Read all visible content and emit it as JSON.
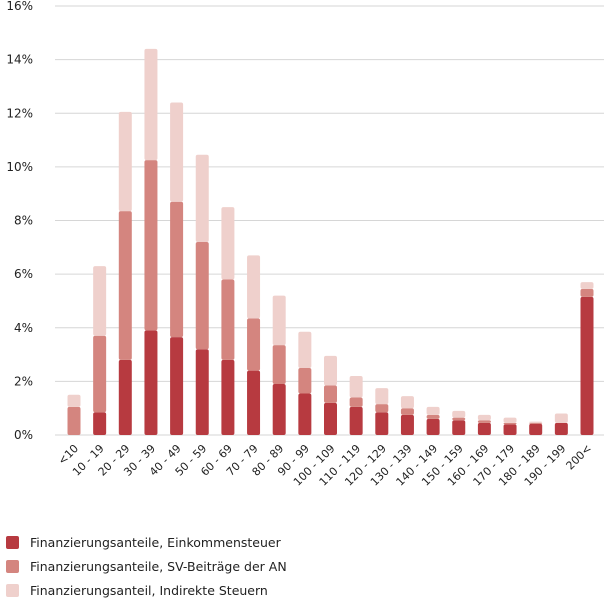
{
  "chart_data": {
    "type": "bar",
    "stacked": true,
    "categories": [
      "<10",
      "10 - 19",
      "20 - 29",
      "30 - 39",
      "40 - 49",
      "50 - 59",
      "60 - 69",
      "70 - 79",
      "80 - 89",
      "90 - 99",
      "100 - 109",
      "110 - 119",
      "120 - 129",
      "130 - 139",
      "140 - 149",
      "150 - 159",
      "160 - 169",
      "170 - 179",
      "180 - 189",
      "190 - 199",
      "200<"
    ],
    "series": [
      {
        "name": "Finanzierungsanteile, Einkommensteuer",
        "color": "#b73a40",
        "values": [
          0.0,
          0.85,
          2.8,
          3.9,
          3.65,
          3.2,
          2.8,
          2.4,
          1.9,
          1.55,
          1.2,
          1.05,
          0.85,
          0.75,
          0.6,
          0.55,
          0.45,
          0.4,
          0.42,
          0.45,
          5.15
        ]
      },
      {
        "name": "Finanzierungsanteile, SV-Beiträge der AN",
        "color": "#d4857f",
        "values": [
          1.05,
          2.85,
          5.55,
          6.35,
          5.05,
          4.0,
          3.0,
          1.95,
          1.45,
          0.95,
          0.65,
          0.35,
          0.3,
          0.25,
          0.15,
          0.1,
          0.1,
          0.05,
          0.03,
          0.0,
          0.3
        ]
      },
      {
        "name": "Finanzierungsanteil, Indirekte Steuern",
        "color": "#efd0cc",
        "values": [
          0.45,
          2.6,
          3.7,
          4.15,
          3.7,
          3.25,
          2.7,
          2.35,
          1.85,
          1.35,
          1.1,
          0.8,
          0.6,
          0.45,
          0.3,
          0.25,
          0.2,
          0.2,
          0.05,
          0.35,
          0.25
        ]
      }
    ],
    "y_ticks": [
      "0%",
      "2%",
      "4%",
      "6%",
      "8%",
      "10%",
      "12%",
      "14%",
      "16%"
    ],
    "ylim": [
      0,
      16
    ],
    "grid": "horizontal",
    "legend_position": "bottom-left"
  }
}
